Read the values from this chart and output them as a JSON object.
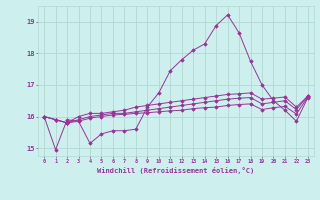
{
  "background_color": "#cdf0ee",
  "grid_color": "#b0d8d0",
  "line_color": "#993399",
  "marker_color": "#993399",
  "xlabel": "Windchill (Refroidissement éolien,°C)",
  "xlabel_color": "#993399",
  "tick_color": "#993399",
  "ylim": [
    14.75,
    19.5
  ],
  "xlim": [
    -0.5,
    23.5
  ],
  "yticks": [
    15,
    16,
    17,
    18,
    19
  ],
  "xticks": [
    0,
    1,
    2,
    3,
    4,
    5,
    6,
    7,
    8,
    9,
    10,
    11,
    12,
    13,
    14,
    15,
    16,
    17,
    18,
    19,
    20,
    21,
    22,
    23
  ],
  "lines": [
    [
      16.0,
      14.95,
      15.9,
      15.85,
      15.15,
      15.45,
      15.55,
      15.55,
      15.6,
      16.3,
      16.75,
      17.45,
      17.8,
      18.1,
      18.3,
      18.88,
      19.22,
      18.65,
      17.75,
      17.0,
      16.5,
      16.2,
      15.85,
      16.6
    ],
    [
      16.0,
      15.9,
      15.8,
      16.0,
      16.1,
      16.1,
      16.15,
      16.2,
      16.3,
      16.35,
      16.4,
      16.45,
      16.5,
      16.55,
      16.6,
      16.65,
      16.7,
      16.72,
      16.75,
      16.55,
      16.58,
      16.62,
      16.3,
      16.65
    ],
    [
      16.0,
      15.9,
      15.8,
      15.9,
      16.0,
      16.05,
      16.1,
      16.1,
      16.15,
      16.2,
      16.25,
      16.3,
      16.35,
      16.4,
      16.45,
      16.5,
      16.55,
      16.58,
      16.6,
      16.4,
      16.45,
      16.5,
      16.22,
      16.65
    ],
    [
      16.0,
      15.9,
      15.8,
      15.85,
      15.95,
      16.0,
      16.05,
      16.07,
      16.1,
      16.12,
      16.15,
      16.18,
      16.2,
      16.25,
      16.28,
      16.3,
      16.35,
      16.38,
      16.4,
      16.22,
      16.28,
      16.32,
      16.08,
      16.62
    ]
  ],
  "figsize": [
    3.2,
    2.0
  ],
  "dpi": 100
}
